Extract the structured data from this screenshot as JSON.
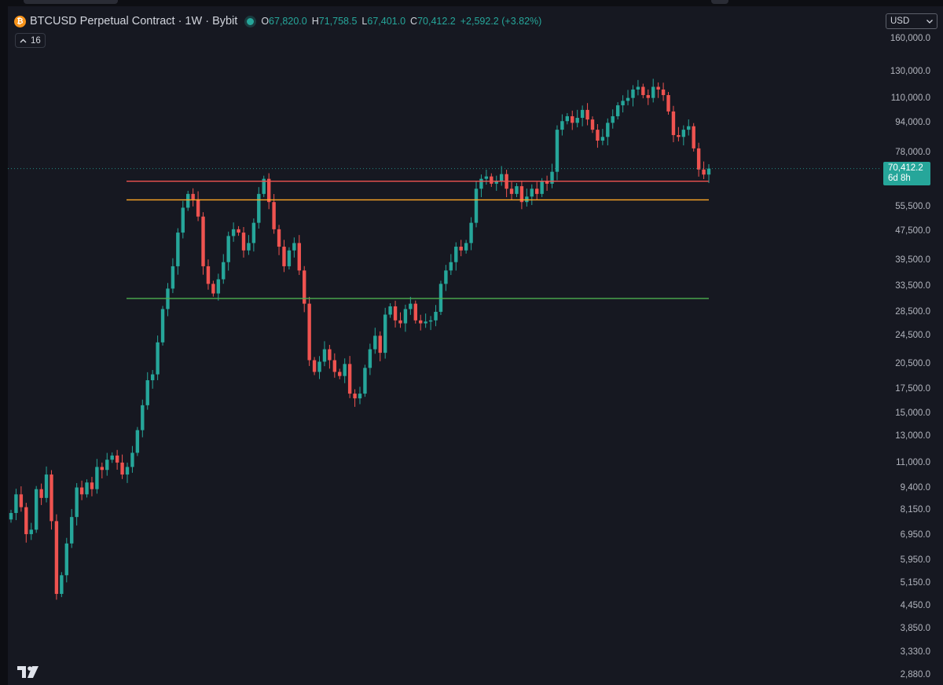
{
  "header": {
    "symbol_title": "BTCUSD Perpetual Contract · 1W · Bybit",
    "coin_icon": "bitcoin-icon",
    "ohlc": {
      "o_label": "O",
      "o_value": "67,820.0",
      "h_label": "H",
      "h_value": "71,758.5",
      "l_label": "L",
      "l_value": "67,401.0",
      "c_label": "C",
      "c_value": "70,412.2"
    },
    "change": "+2,592.2 (+3.82%)",
    "indicator_count": "16",
    "indicator_icon": "chevron-up-icon"
  },
  "currency": {
    "value": "USD",
    "icon": "chevron-down-icon"
  },
  "price_axis": {
    "scale": "log",
    "ticks": [
      "160,000.0",
      "130,000.0",
      "110,000.0",
      "94,000.0",
      "78,000.0",
      "55,500.0",
      "47,500.0",
      "39,500.0",
      "33,500.0",
      "28,500.0",
      "24,500.0",
      "20,500.0",
      "17,500.0",
      "15,000.0",
      "13,000.0",
      "11,000.0",
      "9,400.0",
      "8,150.0",
      "6,950.0",
      "5,950.0",
      "5,150.0",
      "4,450.0",
      "3,850.0",
      "3,330.0",
      "2,880.0"
    ]
  },
  "last_price": {
    "value": "70,412.2",
    "countdown": "6d 8h",
    "color": "#26a69a"
  },
  "colors": {
    "up": "#26a69a",
    "down": "#ef5350",
    "background": "#161821"
  },
  "horizontal_lines": [
    {
      "price": 65000,
      "color": "#ef5350"
    },
    {
      "price": 57800,
      "color": "#ffa726"
    },
    {
      "price": 31000,
      "color": "#4caf50"
    }
  ],
  "chart_data": {
    "type": "line",
    "title": "BTCUSD Perpetual Contract · 1W · Bybit",
    "xlabel": "",
    "ylabel": "",
    "y_scale": "log",
    "ylim": [
      2700,
      175000
    ],
    "grid": false,
    "interval": "1W",
    "series": [
      {
        "name": "BTCUSD",
        "values": [
          8000,
          9000,
          8300,
          7000,
          7200,
          9300,
          8800,
          10200,
          7600,
          4800,
          5400,
          6600,
          7800,
          9400,
          9000,
          9700,
          9300,
          10700,
          10500,
          11200,
          11500,
          11000,
          10200,
          10700,
          11700,
          13500,
          15800,
          18500,
          19200,
          23500,
          29000,
          33000,
          38000,
          47000,
          55000,
          60000,
          58000,
          52000,
          38000,
          34000,
          32000,
          35000,
          39000,
          46000,
          48000,
          47000,
          42000,
          44000,
          50000,
          60000,
          66000,
          57000,
          48000,
          43000,
          38000,
          42000,
          44000,
          37000,
          30000,
          21000,
          19500,
          20800,
          22500,
          21000,
          19500,
          19000,
          20500,
          17000,
          16500,
          17000,
          20000,
          22500,
          24500,
          22000,
          28000,
          29500,
          27000,
          26500,
          29000,
          30000,
          27000,
          26500,
          26800,
          27000,
          28500,
          34000,
          37000,
          39000,
          43000,
          42000,
          44000,
          50000,
          62000,
          66000,
          67000,
          64000,
          65000,
          68000,
          62000,
          60000,
          63000,
          57000,
          59000,
          62000,
          60000,
          65000,
          64000,
          69000,
          90000,
          95000,
          98000,
          94000,
          97000,
          102000,
          96000,
          90000,
          84000,
          86000,
          94000,
          98000,
          105000,
          108000,
          110000,
          116000,
          118000,
          112000,
          110000,
          118000,
          116000,
          112000,
          101000,
          87000,
          86000,
          90000,
          92000,
          80000,
          70000,
          67800,
          70412
        ]
      }
    ]
  }
}
